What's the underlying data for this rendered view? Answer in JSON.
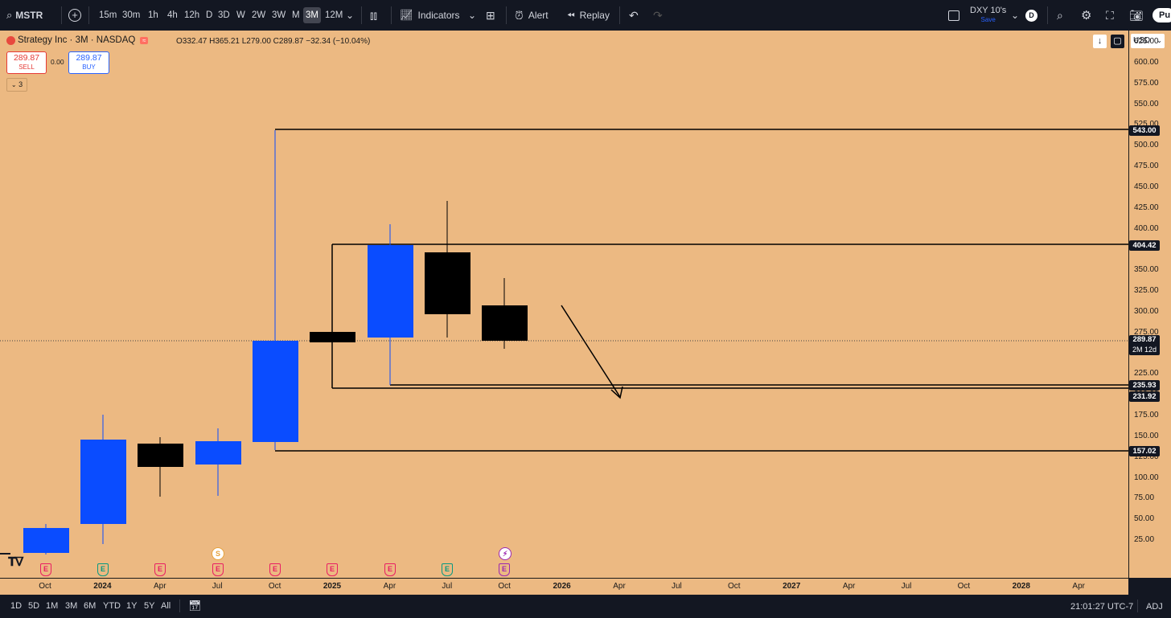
{
  "topbar": {
    "symbol": "MSTR",
    "timeframes": [
      "15m",
      "30m",
      "1h",
      "4h",
      "12h",
      "D",
      "3D",
      "W",
      "2W",
      "3W",
      "M",
      "3M",
      "12M"
    ],
    "active_timeframe": "3M",
    "indicators_label": "Indicators",
    "alert_label": "Alert",
    "replay_label": "Replay",
    "layout_name": "DXY 10's",
    "layout_sub": "Save",
    "avatar_letter": "D",
    "publish_label": "Pu"
  },
  "legend": {
    "title": "Strategy Inc · 3M · NASDAQ",
    "ohlc": "O332.47  H365.21  L279.00  C289.87  −32.34 (−10.04%)",
    "sell_price": "289.87",
    "sell_label": "SELL",
    "spread": "0.00",
    "buy_price": "289.87",
    "buy_label": "BUY",
    "collapse_count": "3"
  },
  "price_axis": {
    "currency": "USD",
    "ticks": [
      "625.00",
      "600.00",
      "575.00",
      "550.00",
      "525.00",
      "500.00",
      "475.00",
      "450.00",
      "425.00",
      "400.00",
      "375.00",
      "350.00",
      "325.00",
      "300.00",
      "275.00",
      "250.00",
      "225.00",
      "200.00",
      "175.00",
      "150.00",
      "125.00",
      "100.00",
      "75.00",
      "50.00",
      "25.00"
    ],
    "tags": {
      "l543": "543.00",
      "l404": "404.42",
      "current": "289.87",
      "countdown": "2M 12d",
      "l235": "235.93",
      "l231": "231.92",
      "l157": "157.02"
    }
  },
  "time_axis": {
    "labels": [
      "Oct",
      "2024",
      "Apr",
      "Jul",
      "Oct",
      "2025",
      "Apr",
      "Jul",
      "Oct",
      "2026",
      "Apr",
      "Jul",
      "Oct",
      "2027",
      "Apr",
      "Jul",
      "Oct",
      "2028",
      "Apr"
    ]
  },
  "bottombar": {
    "ranges": [
      "1D",
      "5D",
      "1M",
      "3M",
      "6M",
      "YTD",
      "1Y",
      "5Y",
      "All"
    ],
    "clock": "21:01:27 UTC-7",
    "adj": "ADJ"
  },
  "events": {
    "earnings": "E",
    "split": "S"
  },
  "colors": {
    "background": "#ecb982",
    "up": "#0a4cff",
    "down": "#000000"
  }
}
